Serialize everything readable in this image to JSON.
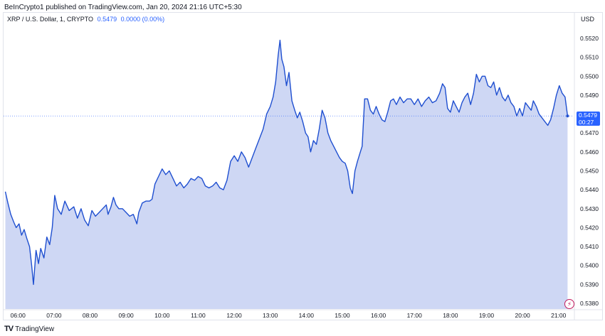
{
  "header": {
    "published": "BeInCrypto1 published on TradingView.com, Jan 20, 2024 21:16 UTC+5:30"
  },
  "legend": {
    "symbol": "XRP / U.S. Dollar, 1, CRYPTO",
    "price": "0.5479",
    "change": "0.0000 (0.00%)"
  },
  "currency": "USD",
  "last_price_tag": {
    "price": "0.5479",
    "countdown": "00:27"
  },
  "footer": {
    "brand": "TradingView"
  },
  "icons": {
    "flash": "lightning-icon",
    "logo": "tradingview-logo-icon"
  },
  "colors": {
    "line": "#1f4fd0",
    "area": "#c5d0f2",
    "accent": "#2962ff",
    "flash": "#c2185b"
  },
  "chart_data": {
    "type": "area",
    "title": "XRP / U.S. Dollar, 1, CRYPTO",
    "xlabel": "",
    "ylabel": "",
    "x_ticks": [
      "06:00",
      "07:00",
      "08:00",
      "09:00",
      "10:00",
      "11:00",
      "12:00",
      "13:00",
      "14:00",
      "15:00",
      "16:00",
      "17:00",
      "18:00",
      "19:00",
      "20:00",
      "21:00"
    ],
    "y_ticks": [
      "0.5380",
      "0.5390",
      "0.5400",
      "0.5410",
      "0.5420",
      "0.5430",
      "0.5440",
      "0.5450",
      "0.5460",
      "0.5470",
      "0.5480",
      "0.5490",
      "0.5500",
      "0.5510",
      "0.5520"
    ],
    "ylim": [
      0.5377,
      0.5529
    ],
    "x_unit": "hours",
    "xlim": [
      5.6,
      21.4
    ],
    "last_price": 0.5479,
    "series": [
      {
        "values": [
          [
            5.65,
            0.5439
          ],
          [
            5.72,
            0.5433
          ],
          [
            5.8,
            0.5427
          ],
          [
            5.88,
            0.5423
          ],
          [
            5.95,
            0.542
          ],
          [
            6.03,
            0.5422
          ],
          [
            6.1,
            0.5416
          ],
          [
            6.17,
            0.5419
          ],
          [
            6.25,
            0.5414
          ],
          [
            6.32,
            0.541
          ],
          [
            6.38,
            0.54
          ],
          [
            6.43,
            0.539
          ],
          [
            6.5,
            0.5408
          ],
          [
            6.57,
            0.5401
          ],
          [
            6.63,
            0.5409
          ],
          [
            6.72,
            0.5404
          ],
          [
            6.8,
            0.5415
          ],
          [
            6.88,
            0.5411
          ],
          [
            6.95,
            0.542
          ],
          [
            7.02,
            0.5437
          ],
          [
            7.1,
            0.543
          ],
          [
            7.2,
            0.5427
          ],
          [
            7.3,
            0.5434
          ],
          [
            7.42,
            0.5429
          ],
          [
            7.55,
            0.5431
          ],
          [
            7.65,
            0.5425
          ],
          [
            7.75,
            0.543
          ],
          [
            7.85,
            0.5424
          ],
          [
            7.95,
            0.5421
          ],
          [
            8.05,
            0.5429
          ],
          [
            8.15,
            0.5426
          ],
          [
            8.25,
            0.5428
          ],
          [
            8.35,
            0.543
          ],
          [
            8.45,
            0.5432
          ],
          [
            8.5,
            0.5427
          ],
          [
            8.58,
            0.5431
          ],
          [
            8.65,
            0.5436
          ],
          [
            8.72,
            0.5432
          ],
          [
            8.8,
            0.543
          ],
          [
            8.9,
            0.543
          ],
          [
            9.0,
            0.5428
          ],
          [
            9.1,
            0.5426
          ],
          [
            9.2,
            0.5427
          ],
          [
            9.3,
            0.5422
          ],
          [
            9.35,
            0.5428
          ],
          [
            9.45,
            0.5433
          ],
          [
            9.55,
            0.5434
          ],
          [
            9.65,
            0.5434
          ],
          [
            9.72,
            0.5435
          ],
          [
            9.8,
            0.5443
          ],
          [
            9.9,
            0.5447
          ],
          [
            10.0,
            0.5451
          ],
          [
            10.1,
            0.5448
          ],
          [
            10.2,
            0.545
          ],
          [
            10.3,
            0.5446
          ],
          [
            10.4,
            0.5442
          ],
          [
            10.5,
            0.5444
          ],
          [
            10.6,
            0.5441
          ],
          [
            10.7,
            0.5443
          ],
          [
            10.8,
            0.5446
          ],
          [
            10.9,
            0.5445
          ],
          [
            11.0,
            0.5447
          ],
          [
            11.1,
            0.5446
          ],
          [
            11.2,
            0.5442
          ],
          [
            11.3,
            0.5441
          ],
          [
            11.4,
            0.5442
          ],
          [
            11.5,
            0.5444
          ],
          [
            11.6,
            0.5441
          ],
          [
            11.7,
            0.544
          ],
          [
            11.8,
            0.5445
          ],
          [
            11.9,
            0.5455
          ],
          [
            12.0,
            0.5458
          ],
          [
            12.1,
            0.5455
          ],
          [
            12.2,
            0.546
          ],
          [
            12.3,
            0.5457
          ],
          [
            12.4,
            0.5452
          ],
          [
            12.5,
            0.5457
          ],
          [
            12.6,
            0.5462
          ],
          [
            12.7,
            0.5467
          ],
          [
            12.8,
            0.5472
          ],
          [
            12.9,
            0.548
          ],
          [
            13.0,
            0.5484
          ],
          [
            13.08,
            0.5489
          ],
          [
            13.15,
            0.5497
          ],
          [
            13.22,
            0.5511
          ],
          [
            13.27,
            0.5519
          ],
          [
            13.32,
            0.5509
          ],
          [
            13.38,
            0.5505
          ],
          [
            13.45,
            0.5495
          ],
          [
            13.52,
            0.5502
          ],
          [
            13.6,
            0.5487
          ],
          [
            13.68,
            0.5482
          ],
          [
            13.75,
            0.5478
          ],
          [
            13.82,
            0.5481
          ],
          [
            13.9,
            0.5476
          ],
          [
            13.98,
            0.547
          ],
          [
            14.05,
            0.5468
          ],
          [
            14.12,
            0.546
          ],
          [
            14.2,
            0.5466
          ],
          [
            14.28,
            0.5464
          ],
          [
            14.36,
            0.5472
          ],
          [
            14.44,
            0.5482
          ],
          [
            14.52,
            0.5478
          ],
          [
            14.6,
            0.547
          ],
          [
            14.68,
            0.5466
          ],
          [
            14.76,
            0.5463
          ],
          [
            14.84,
            0.546
          ],
          [
            14.92,
            0.5457
          ],
          [
            15.0,
            0.5455
          ],
          [
            15.08,
            0.5454
          ],
          [
            15.15,
            0.545
          ],
          [
            15.22,
            0.5441
          ],
          [
            15.28,
            0.5438
          ],
          [
            15.35,
            0.545
          ],
          [
            15.42,
            0.5455
          ],
          [
            15.5,
            0.546
          ],
          [
            15.55,
            0.5463
          ],
          [
            15.62,
            0.5488
          ],
          [
            15.7,
            0.5488
          ],
          [
            15.78,
            0.5482
          ],
          [
            15.86,
            0.548
          ],
          [
            15.94,
            0.5484
          ],
          [
            16.02,
            0.548
          ],
          [
            16.1,
            0.5477
          ],
          [
            16.18,
            0.5476
          ],
          [
            16.26,
            0.5481
          ],
          [
            16.34,
            0.5487
          ],
          [
            16.42,
            0.5488
          ],
          [
            16.5,
            0.5485
          ],
          [
            16.6,
            0.5489
          ],
          [
            16.7,
            0.5486
          ],
          [
            16.8,
            0.5488
          ],
          [
            16.9,
            0.5488
          ],
          [
            17.0,
            0.5485
          ],
          [
            17.1,
            0.5488
          ],
          [
            17.2,
            0.5484
          ],
          [
            17.3,
            0.5487
          ],
          [
            17.4,
            0.5489
          ],
          [
            17.5,
            0.5486
          ],
          [
            17.6,
            0.5487
          ],
          [
            17.7,
            0.5491
          ],
          [
            17.78,
            0.5496
          ],
          [
            17.85,
            0.5494
          ],
          [
            17.92,
            0.5483
          ],
          [
            18.0,
            0.5481
          ],
          [
            18.08,
            0.5487
          ],
          [
            18.16,
            0.5484
          ],
          [
            18.24,
            0.5481
          ],
          [
            18.32,
            0.5486
          ],
          [
            18.4,
            0.5489
          ],
          [
            18.48,
            0.5491
          ],
          [
            18.56,
            0.5485
          ],
          [
            18.64,
            0.5491
          ],
          [
            18.72,
            0.5501
          ],
          [
            18.8,
            0.5497
          ],
          [
            18.88,
            0.55
          ],
          [
            18.96,
            0.55
          ],
          [
            19.04,
            0.5495
          ],
          [
            19.12,
            0.5494
          ],
          [
            19.2,
            0.5497
          ],
          [
            19.28,
            0.549
          ],
          [
            19.36,
            0.5494
          ],
          [
            19.44,
            0.5489
          ],
          [
            19.52,
            0.5487
          ],
          [
            19.6,
            0.549
          ],
          [
            19.68,
            0.5486
          ],
          [
            19.76,
            0.5484
          ],
          [
            19.84,
            0.5479
          ],
          [
            19.92,
            0.5483
          ],
          [
            20.0,
            0.5479
          ],
          [
            20.08,
            0.5486
          ],
          [
            20.16,
            0.5484
          ],
          [
            20.24,
            0.5482
          ],
          [
            20.3,
            0.5487
          ],
          [
            20.38,
            0.5484
          ],
          [
            20.46,
            0.548
          ],
          [
            20.54,
            0.5478
          ],
          [
            20.62,
            0.5476
          ],
          [
            20.7,
            0.5474
          ],
          [
            20.78,
            0.5477
          ],
          [
            20.86,
            0.5483
          ],
          [
            20.94,
            0.549
          ],
          [
            21.02,
            0.5495
          ],
          [
            21.1,
            0.5491
          ],
          [
            21.18,
            0.5489
          ],
          [
            21.25,
            0.5479
          ]
        ]
      }
    ]
  }
}
